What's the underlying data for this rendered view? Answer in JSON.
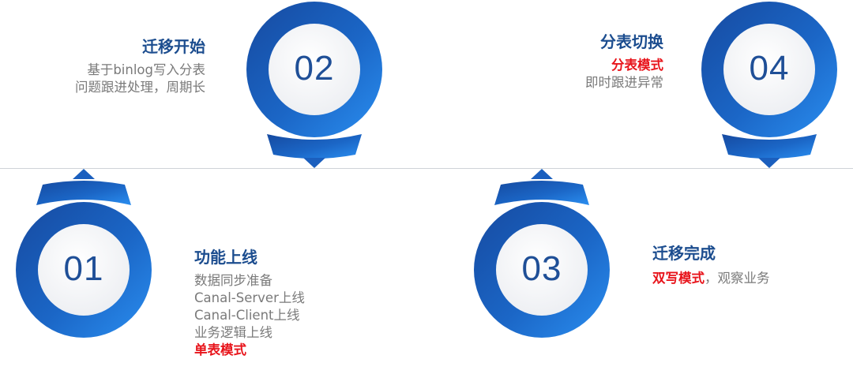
{
  "colors": {
    "accent": "#1e6fd0",
    "title": "#1c4d8f",
    "highlight": "#e8141b",
    "body": "#7a7a7a"
  },
  "steps": {
    "s01": {
      "number": "01",
      "title": "功能上线",
      "lines": [
        "数据同步准备",
        "Canal-Server上线",
        "Canal-Client上线",
        "业务逻辑上线"
      ],
      "highlight": "单表模式"
    },
    "s02": {
      "number": "02",
      "title": "迁移开始",
      "lines": [
        "基于binlog写入分表",
        "问题跟进处理，周期长"
      ]
    },
    "s03": {
      "number": "03",
      "title": "迁移完成",
      "highlight": "双写模式",
      "rest": "，观察业务"
    },
    "s04": {
      "number": "04",
      "title": "分表切换",
      "highlight": "分表模式",
      "lines": [
        "即时跟进异常"
      ]
    }
  }
}
